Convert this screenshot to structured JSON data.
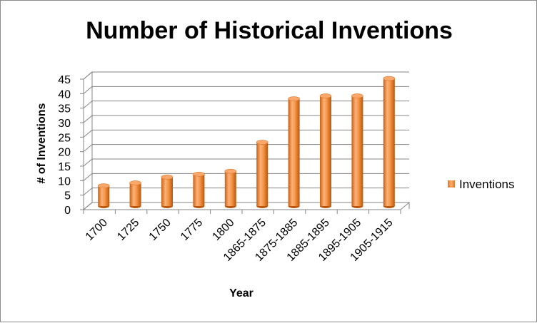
{
  "chart_data": {
    "type": "bar",
    "style": "3d-cylinder",
    "title": "Number of Historical Inventions",
    "xlabel": "Year",
    "ylabel": "# of Inventions",
    "categories": [
      "1700",
      "1725",
      "1750",
      "1775",
      "1800",
      "1865-1875",
      "1875-1885",
      "1885-1895",
      "1895-1905",
      "1905-1915"
    ],
    "series": [
      {
        "name": "Inventions",
        "values": [
          7,
          8,
          10,
          11,
          12,
          22,
          37,
          38,
          38,
          44
        ],
        "color": "#f79646"
      }
    ],
    "ylim": [
      0,
      45
    ],
    "yticks": [
      0,
      5,
      10,
      15,
      20,
      25,
      30,
      35,
      40,
      45
    ],
    "grid": true,
    "legend_position": "right"
  }
}
